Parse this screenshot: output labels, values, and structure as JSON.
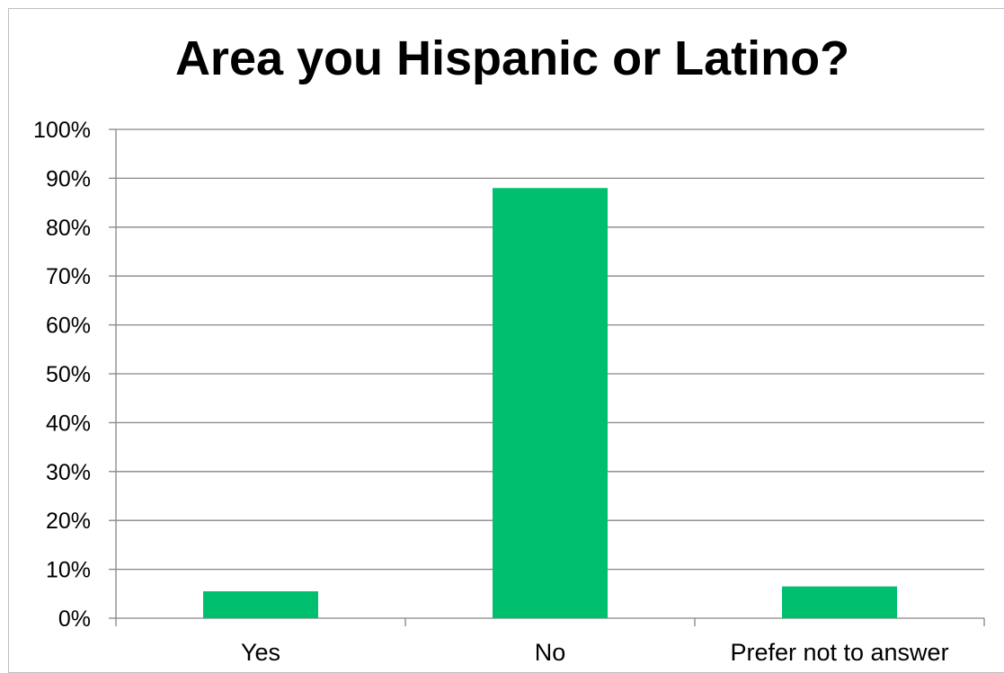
{
  "chart_data": {
    "type": "bar",
    "title": "Area you Hispanic or Latino?",
    "xlabel": "",
    "ylabel": "",
    "categories": [
      "Yes",
      "No",
      "Prefer not to answer"
    ],
    "values": [
      5.5,
      88,
      6.5
    ],
    "ylim": [
      0,
      100
    ],
    "ytick_values": [
      0,
      10,
      20,
      30,
      40,
      50,
      60,
      70,
      80,
      90,
      100
    ],
    "ytick_labels": [
      "0%",
      "10%",
      "20%",
      "30%",
      "40%",
      "50%",
      "60%",
      "70%",
      "80%",
      "90%",
      "100%"
    ],
    "grid": true,
    "legend": "none",
    "bar_color": "#00BF6F",
    "grid_color": "#868686"
  }
}
